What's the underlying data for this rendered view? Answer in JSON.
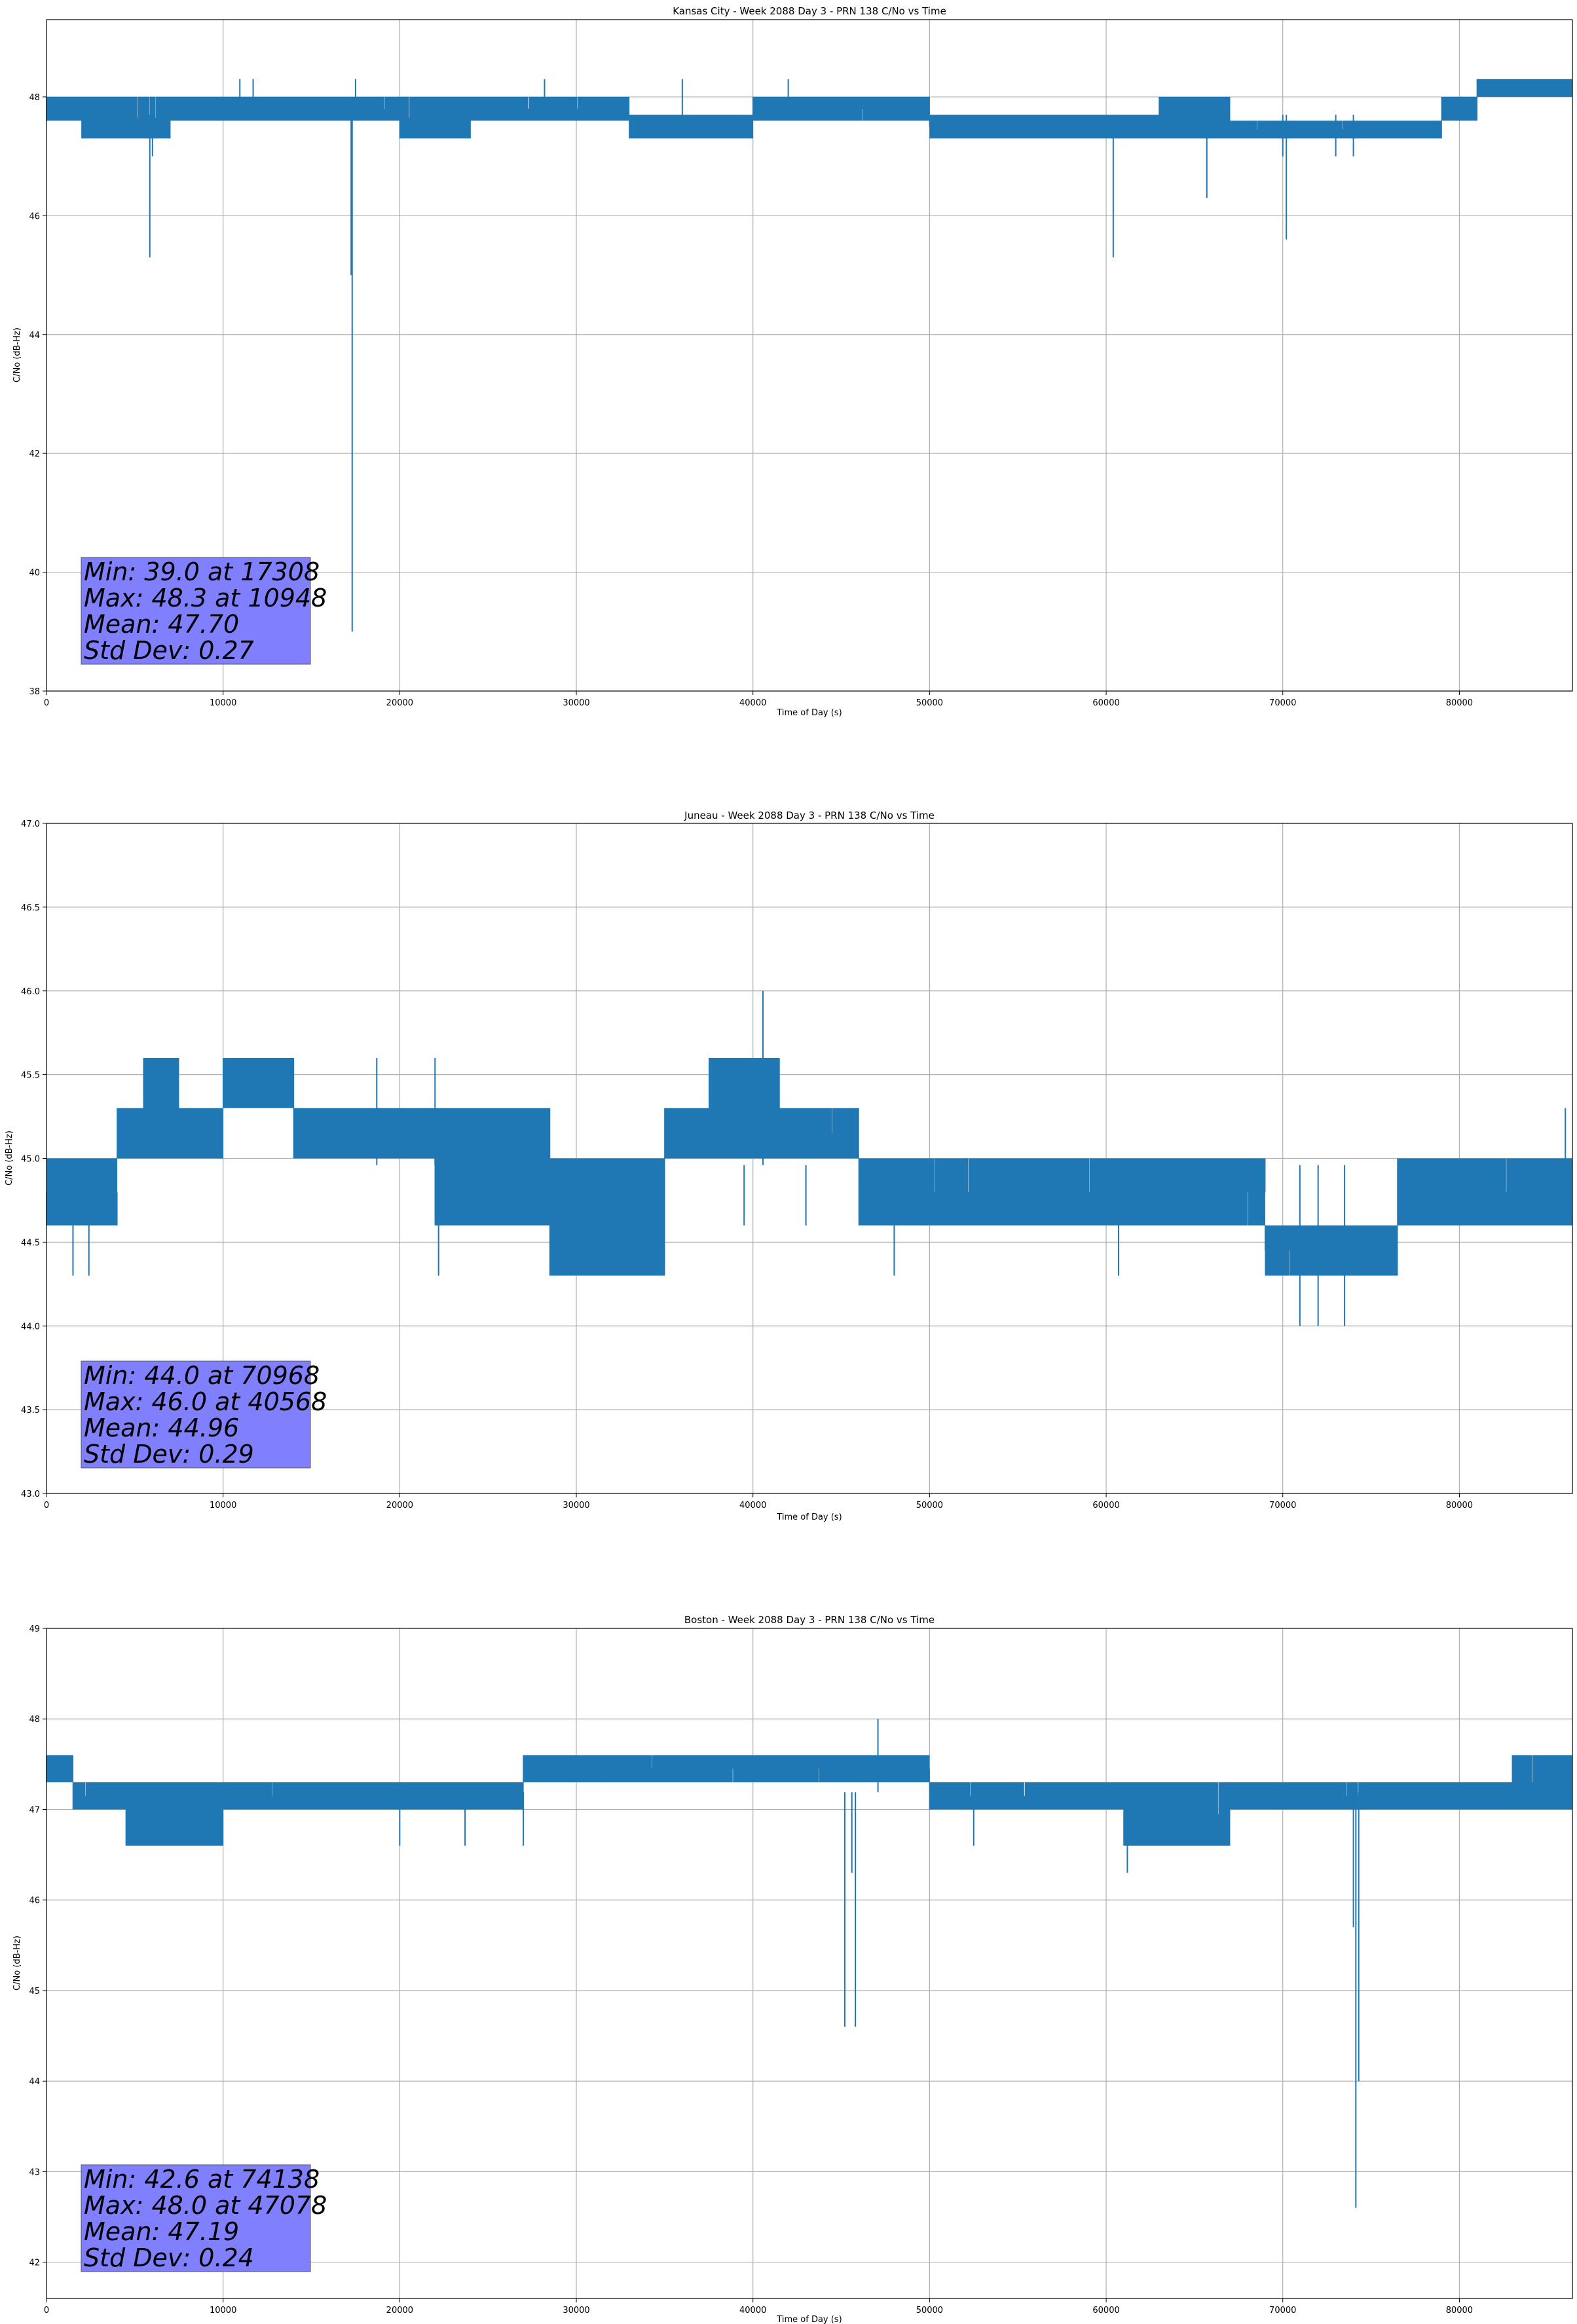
{
  "chart_data": [
    {
      "type": "line",
      "title": "Kansas City - Week 2088 Day 3 - PRN 138 C/No vs Time",
      "xlabel": "Time of Day (s)",
      "ylabel": "C/No (dB-Hz)",
      "xlim": [
        0,
        86400
      ],
      "ylim": [
        38,
        49.3
      ],
      "xticks": [
        0,
        10000,
        20000,
        30000,
        40000,
        50000,
        60000,
        70000,
        80000
      ],
      "yticks": [
        38,
        40,
        42,
        44,
        46,
        48
      ],
      "ytick_labels": [
        "38",
        "40",
        "42",
        "44",
        "46",
        "48"
      ],
      "grid": true,
      "color": "#1f77b4",
      "base": 47.7,
      "stats": {
        "min": "Min: 39.0 at 17308",
        "max": "Max: 48.3 at 10948",
        "mean": "Mean: 47.70",
        "std": "Std Dev: 0.27"
      },
      "bands": [
        [
          0,
          2000,
          47.6,
          48.0
        ],
        [
          2000,
          5000,
          47.3,
          48.0
        ],
        [
          5000,
          7000,
          47.3,
          48.0
        ],
        [
          7000,
          15000,
          47.6,
          48.0
        ],
        [
          15000,
          20000,
          47.6,
          48.0
        ],
        [
          20000,
          24000,
          47.3,
          48.0
        ],
        [
          24000,
          33000,
          47.6,
          48.0
        ],
        [
          33000,
          40000,
          47.3,
          47.7
        ],
        [
          40000,
          50000,
          47.6,
          48.0
        ],
        [
          50000,
          63000,
          47.3,
          47.7
        ],
        [
          63000,
          67000,
          47.3,
          48.0
        ],
        [
          67000,
          79000,
          47.3,
          47.6
        ],
        [
          79000,
          81000,
          47.6,
          48.0
        ],
        [
          81000,
          86400,
          48.0,
          48.3
        ]
      ],
      "spikes": [
        [
          5850,
          45.3
        ],
        [
          17308,
          39.0
        ],
        [
          17250,
          45.0
        ],
        [
          60400,
          45.3
        ],
        [
          65700,
          46.3
        ],
        [
          70200,
          45.6
        ],
        [
          70000,
          47.0
        ],
        [
          6000,
          47.0
        ],
        [
          74000,
          47.0
        ],
        [
          73000,
          47.0
        ],
        [
          28200,
          48.3
        ],
        [
          10948,
          48.3
        ],
        [
          11700,
          48.3
        ],
        [
          17500,
          48.3
        ],
        [
          36000,
          48.3
        ],
        [
          42000,
          48.3
        ]
      ]
    },
    {
      "type": "line",
      "title": "Juneau - Week 2088 Day 3 - PRN 138 C/No vs Time",
      "xlabel": "Time of Day (s)",
      "ylabel": "C/No (dB-Hz)",
      "xlim": [
        0,
        86400
      ],
      "ylim": [
        43.0,
        47.0
      ],
      "xticks": [
        0,
        10000,
        20000,
        30000,
        40000,
        50000,
        60000,
        70000,
        80000
      ],
      "yticks": [
        43.0,
        43.5,
        44.0,
        44.5,
        45.0,
        45.5,
        46.0,
        46.5,
        47.0
      ],
      "ytick_labels": [
        "43.0",
        "43.5",
        "44.0",
        "44.5",
        "45.0",
        "45.5",
        "46.0",
        "46.5",
        "47.0"
      ],
      "grid": true,
      "color": "#1f77b4",
      "base": 44.96,
      "stats": {
        "min": "Min: 44.0 at 70968",
        "max": "Max: 46.0 at 40568",
        "mean": "Mean: 44.96",
        "std": "Std Dev: 0.29"
      },
      "bands": [
        [
          0,
          4000,
          44.6,
          45.0
        ],
        [
          4000,
          5500,
          45.0,
          45.3
        ],
        [
          5500,
          7500,
          45.0,
          45.6
        ],
        [
          7500,
          10000,
          45.0,
          45.3
        ],
        [
          10000,
          14000,
          45.3,
          45.6
        ],
        [
          14000,
          22000,
          45.0,
          45.3
        ],
        [
          22000,
          28500,
          44.6,
          45.3
        ],
        [
          28500,
          35000,
          44.3,
          45.0
        ],
        [
          35000,
          37500,
          45.0,
          45.3
        ],
        [
          37500,
          41500,
          45.0,
          45.6
        ],
        [
          41500,
          46000,
          45.0,
          45.3
        ],
        [
          46000,
          58000,
          44.6,
          45.0
        ],
        [
          58000,
          69000,
          44.6,
          45.0
        ],
        [
          69000,
          76500,
          44.3,
          44.6
        ],
        [
          76500,
          86400,
          44.6,
          45.0
        ]
      ],
      "spikes": [
        [
          40568,
          46.0
        ],
        [
          22200,
          44.3
        ],
        [
          1500,
          44.3
        ],
        [
          2400,
          44.3
        ],
        [
          70968,
          44.0
        ],
        [
          72000,
          44.0
        ],
        [
          73500,
          44.0
        ],
        [
          18700,
          45.6
        ],
        [
          22000,
          45.6
        ],
        [
          39500,
          44.6
        ],
        [
          43000,
          44.6
        ],
        [
          48000,
          44.3
        ],
        [
          60700,
          44.3
        ],
        [
          86000,
          45.3
        ]
      ]
    },
    {
      "type": "line",
      "title": "Boston - Week 2088 Day 3 - PRN 138 C/No vs Time",
      "xlabel": "Time of Day (s)",
      "ylabel": "C/No (dB-Hz)",
      "xlim": [
        0,
        86400
      ],
      "ylim": [
        41.6,
        49.0
      ],
      "xticks": [
        0,
        10000,
        20000,
        30000,
        40000,
        50000,
        60000,
        70000,
        80000
      ],
      "yticks": [
        42,
        43,
        44,
        45,
        46,
        47,
        48,
        49
      ],
      "ytick_labels": [
        "42",
        "43",
        "44",
        "45",
        "46",
        "47",
        "48",
        "49"
      ],
      "grid": true,
      "color": "#1f77b4",
      "base": 47.19,
      "stats": {
        "min": "Min: 42.6 at 74138",
        "max": "Max: 48.0 at 47078",
        "mean": "Mean: 47.19",
        "std": "Std Dev: 0.24"
      },
      "bands": [
        [
          0,
          1500,
          47.3,
          47.6
        ],
        [
          1500,
          4500,
          47.0,
          47.3
        ],
        [
          4500,
          10000,
          46.6,
          47.3
        ],
        [
          10000,
          27000,
          47.0,
          47.3
        ],
        [
          27000,
          40000,
          47.3,
          47.6
        ],
        [
          40000,
          50000,
          47.3,
          47.6
        ],
        [
          50000,
          61000,
          47.0,
          47.3
        ],
        [
          61000,
          67000,
          46.6,
          47.3
        ],
        [
          67000,
          74000,
          47.0,
          47.3
        ],
        [
          74000,
          83000,
          47.0,
          47.3
        ],
        [
          83000,
          86400,
          47.0,
          47.6
        ]
      ],
      "spikes": [
        [
          47078,
          48.0
        ],
        [
          45200,
          44.6
        ],
        [
          45800,
          44.6
        ],
        [
          45600,
          46.3
        ],
        [
          74138,
          42.6
        ],
        [
          74300,
          44.0
        ],
        [
          74000,
          45.7
        ],
        [
          61200,
          46.3
        ],
        [
          20000,
          46.6
        ],
        [
          23700,
          46.6
        ],
        [
          27000,
          46.6
        ],
        [
          52500,
          46.6
        ]
      ]
    }
  ]
}
